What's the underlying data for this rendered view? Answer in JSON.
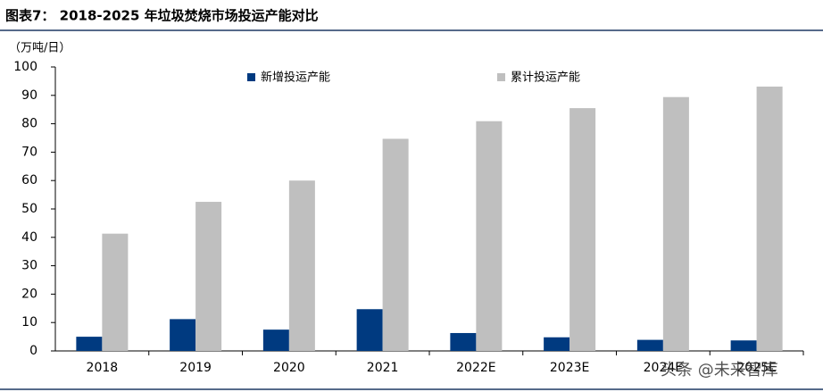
{
  "chart_data": {
    "type": "bar",
    "title": "图表7： 2018-2025 年垃圾焚烧市场投运产能对比",
    "y_label": "（万吨/日）",
    "categories": [
      "2018",
      "2019",
      "2020",
      "2021",
      "2022E",
      "2023E",
      "2024E",
      "2025E"
    ],
    "series": [
      {
        "name": "新增投运产能",
        "color": "#003a80",
        "values": [
          5,
          11.2,
          7.5,
          14.7,
          6.3,
          4.8,
          3.9,
          3.7
        ]
      },
      {
        "name": "累计投运产能",
        "color": "#bfbfbf",
        "values": [
          41.3,
          52.5,
          60,
          74.7,
          80.9,
          85.5,
          89.4,
          93.1
        ]
      }
    ],
    "ylim": [
      0,
      100
    ],
    "yticks": [
      0,
      10,
      20,
      30,
      40,
      50,
      60,
      70,
      80,
      90,
      100
    ],
    "watermark": "头条 @未来智库"
  }
}
